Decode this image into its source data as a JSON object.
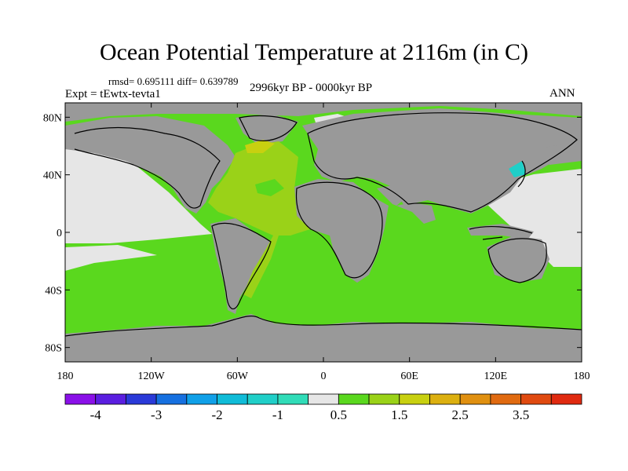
{
  "chart_data": {
    "type": "heatmap",
    "title": "Ocean Potential Temperature at 2116m (in C)",
    "stats": "rmsd= 0.695111 diff= 0.639789",
    "experiment": "Expt = tEwtx-tevta1",
    "period": "2996kyr BP - 0000kyr BP",
    "season": "ANN",
    "xlim": [
      -180,
      180
    ],
    "ylim": [
      -90,
      90
    ],
    "x_ticks": [
      {
        "value": -180,
        "label": "180"
      },
      {
        "value": -120,
        "label": "120W"
      },
      {
        "value": -60,
        "label": "60W"
      },
      {
        "value": 0,
        "label": "0"
      },
      {
        "value": 60,
        "label": "60E"
      },
      {
        "value": 120,
        "label": "120E"
      },
      {
        "value": 180,
        "label": "180"
      }
    ],
    "y_ticks": [
      {
        "value": 80,
        "label": "80N"
      },
      {
        "value": 40,
        "label": "40N"
      },
      {
        "value": 0,
        "label": "0"
      },
      {
        "value": -40,
        "label": "40S"
      },
      {
        "value": -80,
        "label": "80S"
      }
    ],
    "colorbar": {
      "colors": [
        "#8a10e8",
        "#5a1ee0",
        "#2a3ad8",
        "#1670e0",
        "#10a0e8",
        "#10bcd8",
        "#20cfc8",
        "#30dcb8",
        "#e6e6e6",
        "#5ad81e",
        "#9ad218",
        "#c8d010",
        "#dcb010",
        "#e09010",
        "#e06a10",
        "#e04a10",
        "#e02a10"
      ],
      "labels": [
        {
          "at": 1,
          "text": "-4"
        },
        {
          "at": 3,
          "text": "-3"
        },
        {
          "at": 5,
          "text": "-2"
        },
        {
          "at": 7,
          "text": "-1"
        },
        {
          "at": 9,
          "text": "0.5"
        },
        {
          "at": 11,
          "text": "1.5"
        },
        {
          "at": 13,
          "text": "2.5"
        },
        {
          "at": 15,
          "text": "3.5"
        }
      ]
    }
  }
}
